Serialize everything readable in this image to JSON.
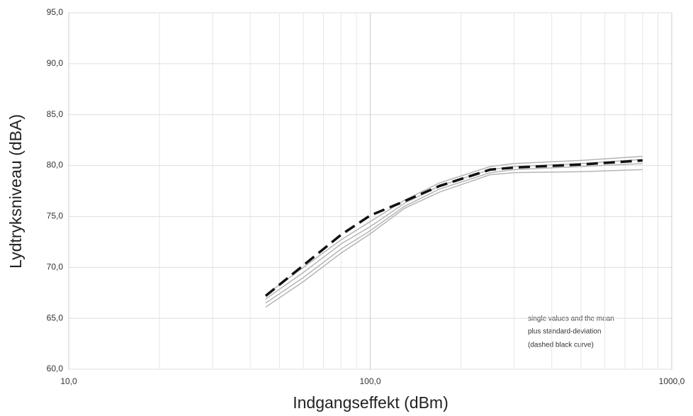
{
  "chart_data": {
    "type": "line",
    "xlabel": "Indgangseffekt (dBm)",
    "ylabel": "Lydtryksniveau  (dBA)",
    "annotation": [
      "single values and the mean",
      "plus standard-deviation",
      "(dashed black curve)"
    ],
    "log_x": true,
    "grid": true,
    "xlim": [
      10,
      1000
    ],
    "xticks": [
      {
        "value": 10,
        "label": "10,0"
      },
      {
        "value": 100,
        "label": "100,0"
      },
      {
        "value": 1000,
        "label": "1000,0"
      }
    ],
    "xminorticks": [
      20,
      30,
      40,
      50,
      60,
      70,
      80,
      90,
      200,
      300,
      400,
      500,
      600,
      700,
      800,
      900
    ],
    "ylim": [
      60,
      95
    ],
    "yticks": [
      {
        "value": 60,
        "label": "60,0"
      },
      {
        "value": 65,
        "label": "65,0"
      },
      {
        "value": 70,
        "label": "70,0"
      },
      {
        "value": 75,
        "label": "75,0"
      },
      {
        "value": 80,
        "label": "80,0"
      },
      {
        "value": 85,
        "label": "85,0"
      },
      {
        "value": 90,
        "label": "90,0"
      },
      {
        "value": 95,
        "label": "95,0"
      }
    ],
    "x": [
      45,
      60,
      80,
      100,
      130,
      170,
      250,
      300,
      500,
      800
    ],
    "series": [
      {
        "color": "#b5b5b5",
        "dashed": false,
        "values": [
          67.3,
          70.0,
          72.7,
          74.5,
          76.6,
          78.3,
          79.9,
          80.2,
          80.5,
          80.9
        ]
      },
      {
        "color": "#b5b5b5",
        "dashed": false,
        "values": [
          66.9,
          69.5,
          72.3,
          74.0,
          76.3,
          78.0,
          79.6,
          79.9,
          80.2,
          80.6
        ]
      },
      {
        "color": "#b5b5b5",
        "dashed": false,
        "values": [
          66.5,
          69.0,
          71.8,
          73.6,
          76.0,
          77.7,
          79.3,
          79.6,
          79.9,
          80.2
        ]
      },
      {
        "color": "#b5b5b5",
        "dashed": false,
        "values": [
          66.1,
          68.6,
          71.4,
          73.3,
          75.8,
          77.4,
          79.1,
          79.3,
          79.4,
          79.6
        ]
      },
      {
        "color": "#111111",
        "dashed": true,
        "values": [
          67.2,
          70.2,
          73.2,
          75.1,
          76.5,
          78.0,
          79.6,
          79.8,
          80.1,
          80.5
        ]
      }
    ]
  }
}
